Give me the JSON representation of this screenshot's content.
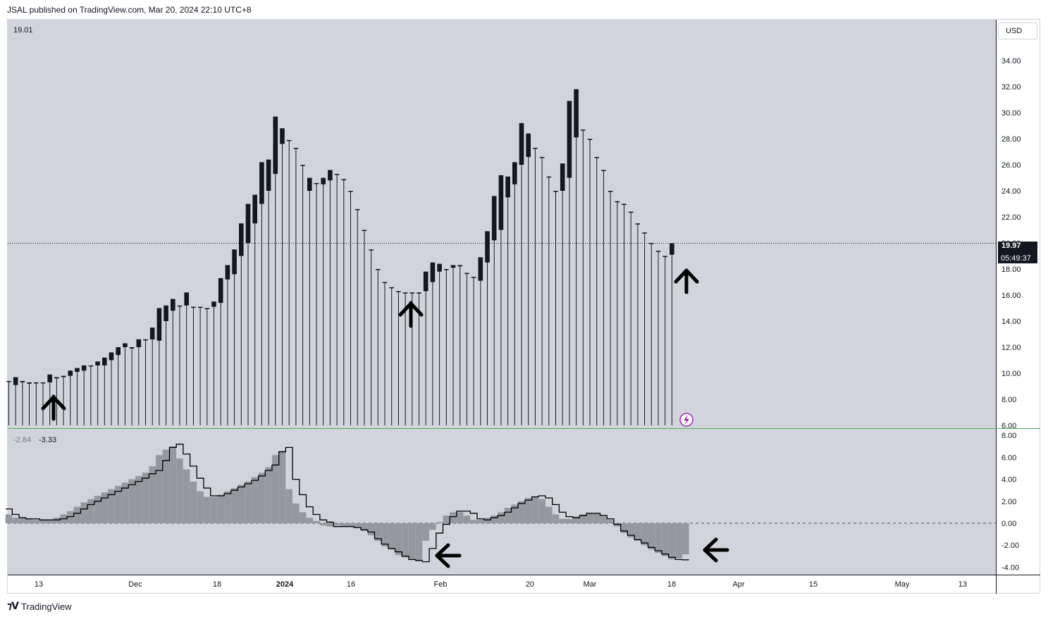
{
  "header": {
    "published": "JSAL published on TradingView.com, Mar 20, 2024 22:10 UTC+8"
  },
  "footer": {
    "brand": "TradingView"
  },
  "price_pane": {
    "currency_label": "USD",
    "legend_value": "19.01",
    "last_price": "19.97",
    "countdown": "05:49:37",
    "y_ticks": [
      "34.00",
      "32.00",
      "30.00",
      "28.00",
      "26.00",
      "24.00",
      "22.00",
      "20.00",
      "18.00",
      "16.00",
      "14.00",
      "12.00",
      "10.00",
      "8.00",
      "6.00"
    ]
  },
  "indicator_pane": {
    "legend_values": [
      "-2.84",
      "-3.33"
    ],
    "y_ticks": [
      "8.00",
      "6.00",
      "4.00",
      "2.00",
      "0.00",
      "-2.00",
      "-4.00"
    ]
  },
  "x_axis": {
    "labels": [
      "13",
      "Dec",
      "18",
      "2024",
      "16",
      "Feb",
      "20",
      "Mar",
      "18",
      "Apr",
      "15",
      "May",
      "13"
    ],
    "bold": [
      "2024"
    ]
  },
  "colors": {
    "background": "#d1d4dc",
    "candle": "#131722",
    "histogram": "#9598a1",
    "baseline": "#4caf50",
    "arrow": "#000000"
  },
  "chart_data": [
    {
      "type": "candlestick",
      "ylim": [
        6,
        35
      ],
      "last": 19.97,
      "candles": [
        [
          9.4,
          9.4,
          6,
          9.4
        ],
        [
          9.1,
          9.7,
          6,
          9.7
        ],
        [
          9.4,
          9.4,
          6,
          9.3
        ],
        [
          9.3,
          9.3,
          6,
          9.2
        ],
        [
          9.3,
          9.3,
          6,
          9.3
        ],
        [
          9.3,
          9.3,
          6,
          9.3
        ],
        [
          9.3,
          9.9,
          6,
          9.9
        ],
        [
          9.6,
          9.6,
          6,
          9.7
        ],
        [
          9.7,
          9.8,
          6,
          9.8
        ],
        [
          9.8,
          10.2,
          6,
          10.2
        ],
        [
          10.1,
          10.4,
          6,
          10.4
        ],
        [
          10.2,
          10.6,
          6,
          10.6
        ],
        [
          10.6,
          10.6,
          6,
          10.6
        ],
        [
          10.6,
          10.9,
          6,
          10.9
        ],
        [
          10.6,
          11.2,
          6,
          11.2
        ],
        [
          11.0,
          11.6,
          6,
          11.6
        ],
        [
          11.4,
          12.0,
          6,
          12.0
        ],
        [
          12.0,
          12.3,
          6,
          12.3
        ],
        [
          11.9,
          12.0,
          6,
          12.0
        ],
        [
          12.0,
          12.6,
          6,
          12.6
        ],
        [
          12.6,
          12.6,
          6,
          12.6
        ],
        [
          12.6,
          13.5,
          6,
          13.5
        ],
        [
          12.5,
          15.0,
          6,
          15.0
        ],
        [
          14.0,
          15.2,
          6,
          15.2
        ],
        [
          14.8,
          15.7,
          6,
          15.7
        ],
        [
          15.2,
          15.2,
          6,
          15.2
        ],
        [
          15.2,
          16.2,
          6,
          16.2
        ],
        [
          15.1,
          15.1,
          6,
          15.1
        ],
        [
          15.1,
          15.1,
          6,
          15.1
        ],
        [
          15.0,
          15.0,
          6,
          15.0
        ],
        [
          15.1,
          15.5,
          6,
          15.5
        ],
        [
          15.4,
          17.3,
          6,
          17.3
        ],
        [
          17.2,
          18.3,
          6,
          18.3
        ],
        [
          17.6,
          19.5,
          6,
          19.5
        ],
        [
          19.0,
          21.5,
          6,
          21.5
        ],
        [
          20.0,
          23.0,
          6,
          23.0
        ],
        [
          21.5,
          23.7,
          6,
          23.7
        ],
        [
          23.0,
          26.2,
          6,
          26.2
        ],
        [
          24.0,
          26.4,
          6,
          26.4
        ],
        [
          25.3,
          29.7,
          6,
          29.7
        ],
        [
          27.6,
          28.8,
          6,
          28.8
        ],
        [
          27.9,
          27.9,
          6,
          27.9
        ],
        [
          27.3,
          27.3,
          6,
          27.3
        ],
        [
          26.0,
          26.0,
          6,
          26.0
        ],
        [
          24.0,
          25.0,
          6,
          25.0
        ],
        [
          24.6,
          24.6,
          6,
          24.6
        ],
        [
          24.5,
          25.0,
          6,
          25.0
        ],
        [
          24.8,
          25.6,
          6,
          25.6
        ],
        [
          25.3,
          25.3,
          6,
          25.3
        ],
        [
          24.9,
          24.9,
          6,
          24.9
        ],
        [
          24.0,
          24.0,
          6,
          24.0
        ],
        [
          22.6,
          22.6,
          6,
          22.6
        ],
        [
          21.0,
          21.0,
          6,
          21.0
        ],
        [
          19.5,
          19.5,
          6,
          19.5
        ],
        [
          18.0,
          18.0,
          6,
          18.0
        ],
        [
          17.0,
          17.0,
          6,
          17.0
        ],
        [
          16.6,
          16.6,
          6,
          16.6
        ],
        [
          16.3,
          16.3,
          6,
          16.3
        ],
        [
          16.2,
          16.2,
          6,
          16.2
        ],
        [
          16.2,
          16.2,
          6,
          16.2
        ],
        [
          16.2,
          16.2,
          6,
          16.2
        ],
        [
          16.3,
          17.8,
          6,
          17.8
        ],
        [
          17.0,
          18.5,
          6,
          18.5
        ],
        [
          17.8,
          18.4,
          6,
          18.4
        ],
        [
          18.0,
          18.0,
          6,
          18.0
        ],
        [
          18.1,
          18.3,
          6,
          18.3
        ],
        [
          18.2,
          18.3,
          6,
          18.3
        ],
        [
          17.7,
          17.7,
          6,
          17.7
        ],
        [
          17.4,
          17.4,
          6,
          17.4
        ],
        [
          17.1,
          18.9,
          6,
          18.9
        ],
        [
          18.5,
          20.9,
          6,
          20.9
        ],
        [
          20.2,
          23.6,
          6,
          23.6
        ],
        [
          21.0,
          25.2,
          6,
          25.2
        ],
        [
          23.5,
          25.1,
          6,
          25.1
        ],
        [
          24.5,
          26.2,
          6,
          26.2
        ],
        [
          26.0,
          29.2,
          6,
          29.2
        ],
        [
          26.6,
          28.4,
          6,
          28.4
        ],
        [
          27.3,
          27.3,
          6,
          27.3
        ],
        [
          26.6,
          26.6,
          6,
          26.6
        ],
        [
          25.1,
          25.1,
          6,
          25.1
        ],
        [
          24.0,
          24.0,
          6,
          24.0
        ],
        [
          24.0,
          26.1,
          6,
          26.1
        ],
        [
          25.0,
          30.9,
          6,
          30.9
        ],
        [
          28.1,
          31.8,
          6,
          31.8
        ],
        [
          28.7,
          28.7,
          6,
          28.7
        ],
        [
          28.0,
          28.0,
          6,
          28.0
        ],
        [
          26.6,
          26.6,
          6,
          26.6
        ],
        [
          25.6,
          25.6,
          6,
          25.6
        ],
        [
          24.0,
          24.0,
          6,
          24.0
        ],
        [
          23.2,
          23.2,
          6,
          23.2
        ],
        [
          23.0,
          23.0,
          6,
          23.0
        ],
        [
          22.4,
          22.4,
          6,
          22.4
        ],
        [
          21.5,
          21.5,
          6,
          21.5
        ],
        [
          20.8,
          20.8,
          6,
          20.8
        ],
        [
          20.0,
          20.0,
          6,
          20.0
        ],
        [
          19.4,
          19.4,
          6,
          19.4
        ],
        [
          19.0,
          19.0,
          6,
          19.0
        ],
        [
          19.1,
          19.97,
          6,
          19.97
        ]
      ]
    },
    {
      "type": "histogram",
      "ylim": [
        -4.5,
        8.5
      ],
      "values": [
        0.8,
        0.5,
        0.5,
        0.4,
        0.3,
        0.3,
        0.3,
        0.5,
        0.8,
        1.1,
        1.5,
        1.9,
        2.2,
        2.5,
        2.8,
        3.1,
        3.4,
        3.7,
        4.0,
        4.3,
        4.6,
        5.2,
        6.2,
        6.7,
        7.0,
        5.9,
        4.9,
        3.8,
        2.9,
        2.4,
        2.4,
        2.6,
        2.9,
        3.2,
        3.5,
        3.8,
        4.2,
        4.6,
        5.1,
        6.2,
        6.6,
        3.1,
        1.8,
        1.0,
        0.5,
        0.2,
        -0.2,
        -0.3,
        -0.2,
        -0.3,
        -0.3,
        -0.4,
        -0.7,
        -1.1,
        -1.6,
        -2.1,
        -2.4,
        -2.9,
        -3.1,
        -3.3,
        -3.4,
        -1.6,
        -0.6,
        0.1,
        0.7,
        1.0,
        1.0,
        0.7,
        0.3,
        0.3,
        0.5,
        0.7,
        1.0,
        1.4,
        1.7,
        2.0,
        2.3,
        2.4,
        2.2,
        1.5,
        0.8,
        0.4,
        0.4,
        0.6,
        0.8,
        0.9,
        0.9,
        0.6,
        0.3,
        -0.3,
        -0.9,
        -1.3,
        -1.6,
        -2.0,
        -2.4,
        -2.7,
        -3.0,
        -3.3,
        -3.2,
        -2.84
      ],
      "signal": [
        1.3,
        0.8,
        0.5,
        0.4,
        0.4,
        0.3,
        0.3,
        0.3,
        0.4,
        0.6,
        0.9,
        1.3,
        1.7,
        2.0,
        2.3,
        2.6,
        2.9,
        3.2,
        3.5,
        3.8,
        4.1,
        4.5,
        4.8,
        5.7,
        6.9,
        7.2,
        6.3,
        5.2,
        4.1,
        3.2,
        2.5,
        2.5,
        2.7,
        3.0,
        3.3,
        3.6,
        3.9,
        4.3,
        4.8,
        5.3,
        6.5,
        6.9,
        4.0,
        2.6,
        1.5,
        0.8,
        0.3,
        0.1,
        -0.3,
        -0.3,
        -0.3,
        -0.4,
        -0.6,
        -0.8,
        -1.4,
        -1.9,
        -2.3,
        -2.6,
        -3.0,
        -3.3,
        -3.4,
        -3.5,
        -2.3,
        -0.9,
        -0.1,
        0.6,
        1.1,
        1.1,
        0.9,
        0.4,
        0.3,
        0.5,
        0.7,
        1.0,
        1.4,
        1.8,
        2.1,
        2.4,
        2.5,
        2.3,
        1.7,
        1.0,
        0.6,
        0.5,
        0.7,
        0.9,
        0.9,
        0.7,
        0.4,
        -0.1,
        -0.7,
        -1.1,
        -1.5,
        -1.8,
        -2.2,
        -2.5,
        -2.8,
        -3.1,
        -3.3,
        -3.33
      ]
    }
  ]
}
